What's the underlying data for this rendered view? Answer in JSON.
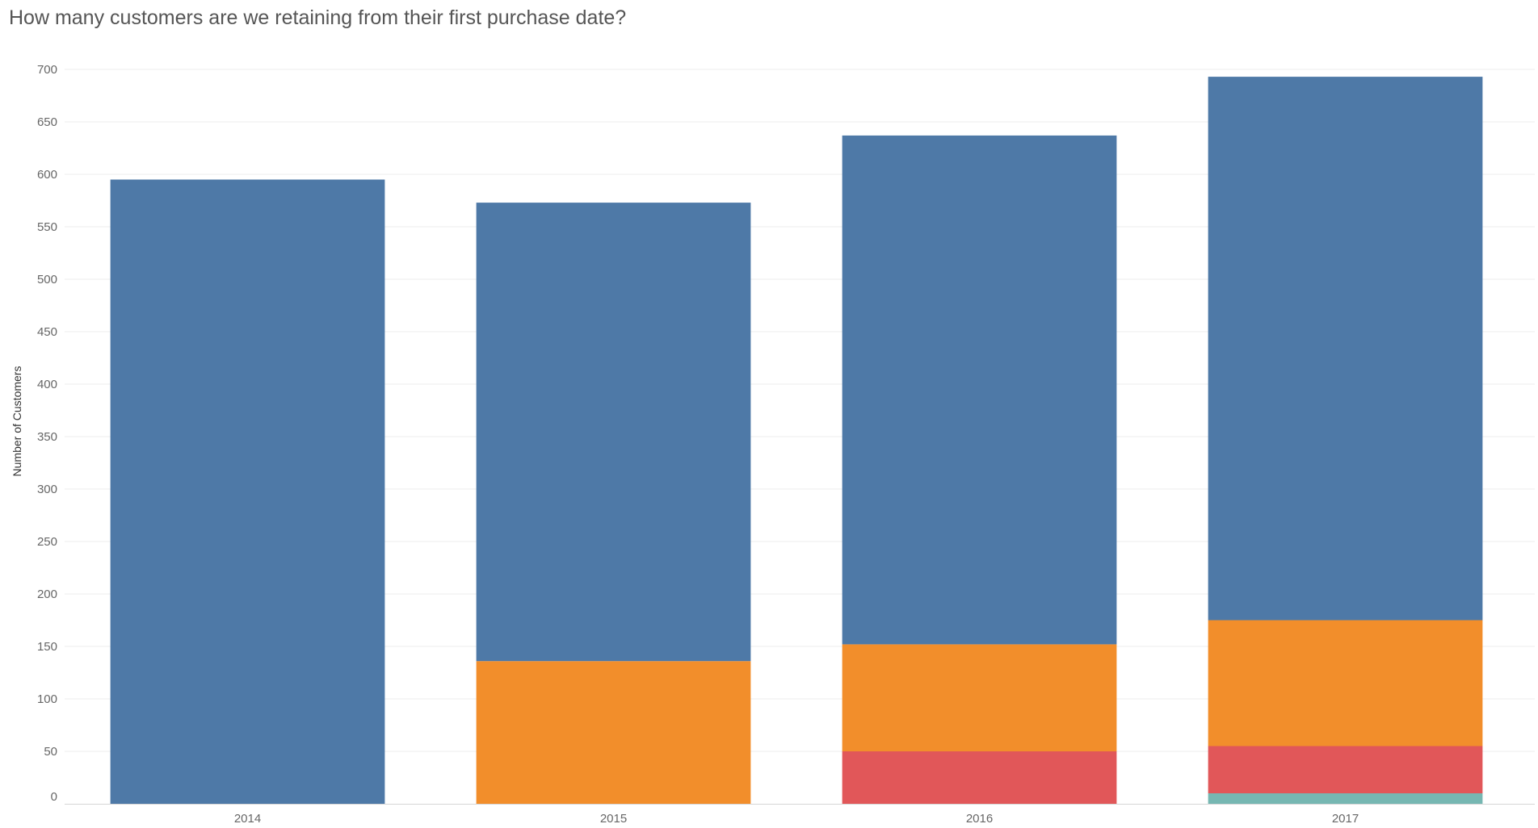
{
  "chart_data": {
    "type": "bar",
    "stacked": true,
    "title": "How many customers are we retaining from their first purchase date?",
    "xlabel": "",
    "ylabel": "Number of Customers",
    "ylim": [
      0,
      700
    ],
    "yticks": [
      0,
      50,
      100,
      150,
      200,
      250,
      300,
      350,
      400,
      450,
      500,
      550,
      600,
      650,
      700
    ],
    "grid": true,
    "legend": "none",
    "categories": [
      "2014",
      "2015",
      "2016",
      "2017"
    ],
    "series": [
      {
        "color": "#e15759",
        "values": [
          0,
          0,
          0,
          0
        ]
      },
      {
        "color": "#76b7b2",
        "values": [
          0,
          0,
          0,
          10
        ]
      },
      {
        "color": "#e15759",
        "values": [
          0,
          0,
          50,
          45
        ]
      },
      {
        "color": "#f28e2b",
        "values": [
          0,
          136,
          102,
          120
        ]
      },
      {
        "color": "#4e79a7",
        "values": [
          595,
          437,
          485,
          518
        ]
      }
    ]
  }
}
